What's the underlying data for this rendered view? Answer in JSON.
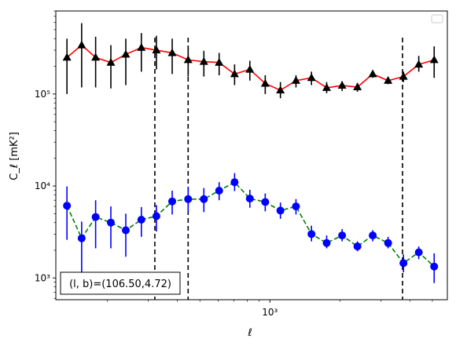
{
  "chart_data": [
    {
      "type": "scatter",
      "title": "",
      "xlabel": "ℓ",
      "ylabel": "C_ℓ  [mK²]",
      "xscale": "log",
      "yscale": "log",
      "xlim": [
        120,
        5800
      ],
      "ylim": [
        580,
        800000
      ],
      "x_tick_labels": [
        {
          "value": 1000,
          "label": "10³"
        }
      ],
      "y_tick_labels": [
        {
          "value": 1000,
          "label": "10³"
        },
        {
          "value": 10000,
          "label": "10⁴"
        },
        {
          "value": 100000,
          "label": "10⁵"
        }
      ],
      "grid": false,
      "legend": "upper right (empty)",
      "annotation": "(l, b)=(106.50,4.72)",
      "vertical_lines": [
        {
          "x": 320,
          "style": "dashed",
          "color": "#000000"
        },
        {
          "x": 445,
          "style": "dashed",
          "color": "#000000"
        },
        {
          "x": 3720,
          "style": "dashed",
          "color": "#000000"
        }
      ],
      "series": [
        {
          "marker": "triangle",
          "marker_color": "#000000",
          "line_color": "#ff0000",
          "line_style": "solid",
          "errorbar_color": "#000000",
          "points": [
            {
              "x": 134,
              "y": 250000,
              "lo": 100000,
              "hi": 400000
            },
            {
              "x": 155,
              "y": 340000,
              "lo": 118000,
              "hi": 590000
            },
            {
              "x": 178,
              "y": 250000,
              "lo": 118000,
              "hi": 420000
            },
            {
              "x": 207,
              "y": 220000,
              "lo": 115000,
              "hi": 340000
            },
            {
              "x": 240,
              "y": 270000,
              "lo": 125000,
              "hi": 400000
            },
            {
              "x": 280,
              "y": 320000,
              "lo": 175000,
              "hi": 460000
            },
            {
              "x": 325,
              "y": 300000,
              "lo": 185000,
              "hi": 430000
            },
            {
              "x": 380,
              "y": 280000,
              "lo": 165000,
              "hi": 400000
            },
            {
              "x": 445,
              "y": 235000,
              "lo": 155000,
              "hi": 320000
            },
            {
              "x": 520,
              "y": 225000,
              "lo": 155000,
              "hi": 295000
            },
            {
              "x": 605,
              "y": 220000,
              "lo": 160000,
              "hi": 280000
            },
            {
              "x": 705,
              "y": 165000,
              "lo": 125000,
              "hi": 210000
            },
            {
              "x": 820,
              "y": 185000,
              "lo": 140000,
              "hi": 230000
            },
            {
              "x": 955,
              "y": 130000,
              "lo": 100000,
              "hi": 160000
            },
            {
              "x": 1110,
              "y": 110000,
              "lo": 90000,
              "hi": 135000
            },
            {
              "x": 1295,
              "y": 140000,
              "lo": 118000,
              "hi": 160000
            },
            {
              "x": 1510,
              "y": 150000,
              "lo": 125000,
              "hi": 175000
            },
            {
              "x": 1755,
              "y": 117000,
              "lo": 102000,
              "hi": 135000
            },
            {
              "x": 2045,
              "y": 124000,
              "lo": 108000,
              "hi": 138000
            },
            {
              "x": 2380,
              "y": 119000,
              "lo": 106000,
              "hi": 132000
            },
            {
              "x": 2770,
              "y": 165000,
              "lo": 150000,
              "hi": 180000
            },
            {
              "x": 3225,
              "y": 140000,
              "lo": 128000,
              "hi": 152000
            },
            {
              "x": 3755,
              "y": 155000,
              "lo": 135000,
              "hi": 175000
            },
            {
              "x": 4370,
              "y": 210000,
              "lo": 175000,
              "hi": 260000
            },
            {
              "x": 5090,
              "y": 235000,
              "lo": 150000,
              "hi": 330000
            }
          ]
        },
        {
          "marker": "circle",
          "marker_color": "#0000ff",
          "line_color": "#008000",
          "line_style": "dashed",
          "errorbar_color": "#0000ff",
          "points": [
            {
              "x": 134,
              "y": 6100,
              "lo": 2600,
              "hi": 9900
            },
            {
              "x": 155,
              "y": 2700,
              "lo": 1000,
              "hi": 4100
            },
            {
              "x": 178,
              "y": 4600,
              "lo": 2100,
              "hi": 7000
            },
            {
              "x": 207,
              "y": 4000,
              "lo": 2100,
              "hi": 6000
            },
            {
              "x": 240,
              "y": 3300,
              "lo": 1700,
              "hi": 5000
            },
            {
              "x": 280,
              "y": 4300,
              "lo": 2800,
              "hi": 5900
            },
            {
              "x": 325,
              "y": 4700,
              "lo": 3200,
              "hi": 6200
            },
            {
              "x": 380,
              "y": 6800,
              "lo": 4900,
              "hi": 8900
            },
            {
              "x": 445,
              "y": 7200,
              "lo": 5200,
              "hi": 9800
            },
            {
              "x": 520,
              "y": 7200,
              "lo": 5200,
              "hi": 9500
            },
            {
              "x": 605,
              "y": 8900,
              "lo": 7000,
              "hi": 11000
            },
            {
              "x": 705,
              "y": 11000,
              "lo": 8800,
              "hi": 13800
            },
            {
              "x": 820,
              "y": 7300,
              "lo": 5800,
              "hi": 9100
            },
            {
              "x": 955,
              "y": 6700,
              "lo": 5300,
              "hi": 8300
            },
            {
              "x": 1110,
              "y": 5400,
              "lo": 4400,
              "hi": 6600
            },
            {
              "x": 1295,
              "y": 6000,
              "lo": 4900,
              "hi": 7200
            },
            {
              "x": 1510,
              "y": 3000,
              "lo": 2500,
              "hi": 3700
            },
            {
              "x": 1755,
              "y": 2400,
              "lo": 2100,
              "hi": 2900
            },
            {
              "x": 2045,
              "y": 2900,
              "lo": 2500,
              "hi": 3400
            },
            {
              "x": 2380,
              "y": 2200,
              "lo": 1950,
              "hi": 2500
            },
            {
              "x": 2770,
              "y": 2900,
              "lo": 2500,
              "hi": 3300
            },
            {
              "x": 3225,
              "y": 2400,
              "lo": 2100,
              "hi": 2800
            },
            {
              "x": 3755,
              "y": 1450,
              "lo": 1150,
              "hi": 1800
            },
            {
              "x": 4370,
              "y": 1900,
              "lo": 1600,
              "hi": 2200
            },
            {
              "x": 5090,
              "y": 1330,
              "lo": 880,
              "hi": 1850
            }
          ]
        }
      ]
    }
  ]
}
